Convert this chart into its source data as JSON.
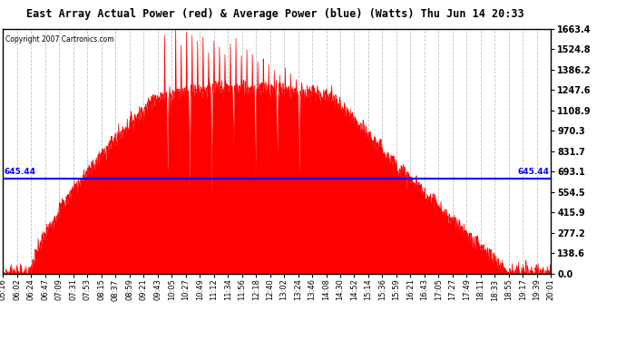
{
  "title": "East Array Actual Power (red) & Average Power (blue) (Watts) Thu Jun 14 20:33",
  "copyright": "Copyright 2007 Cartronics.com",
  "avg_power": 645.44,
  "y_max": 1663.4,
  "y_min": 0.0,
  "y_ticks": [
    0.0,
    138.6,
    277.2,
    415.9,
    554.5,
    693.1,
    831.7,
    970.3,
    1108.9,
    1247.6,
    1386.2,
    1524.8,
    1663.4
  ],
  "fill_color": "#FF0000",
  "line_color": "#0000FF",
  "background_color": "#FFFFFF",
  "grid_color": "#C0C0C0",
  "x_labels": [
    "05:16",
    "06:02",
    "06:24",
    "06:47",
    "07:09",
    "07:31",
    "07:53",
    "08:15",
    "08:37",
    "08:59",
    "09:21",
    "09:43",
    "10:05",
    "10:27",
    "10:49",
    "11:12",
    "11:34",
    "11:56",
    "12:18",
    "12:40",
    "13:02",
    "13:24",
    "13:46",
    "14:08",
    "14:30",
    "14:52",
    "15:14",
    "15:36",
    "15:59",
    "16:21",
    "16:43",
    "17:05",
    "17:27",
    "17:49",
    "18:11",
    "18:33",
    "18:55",
    "19:17",
    "19:39",
    "20:01"
  ]
}
